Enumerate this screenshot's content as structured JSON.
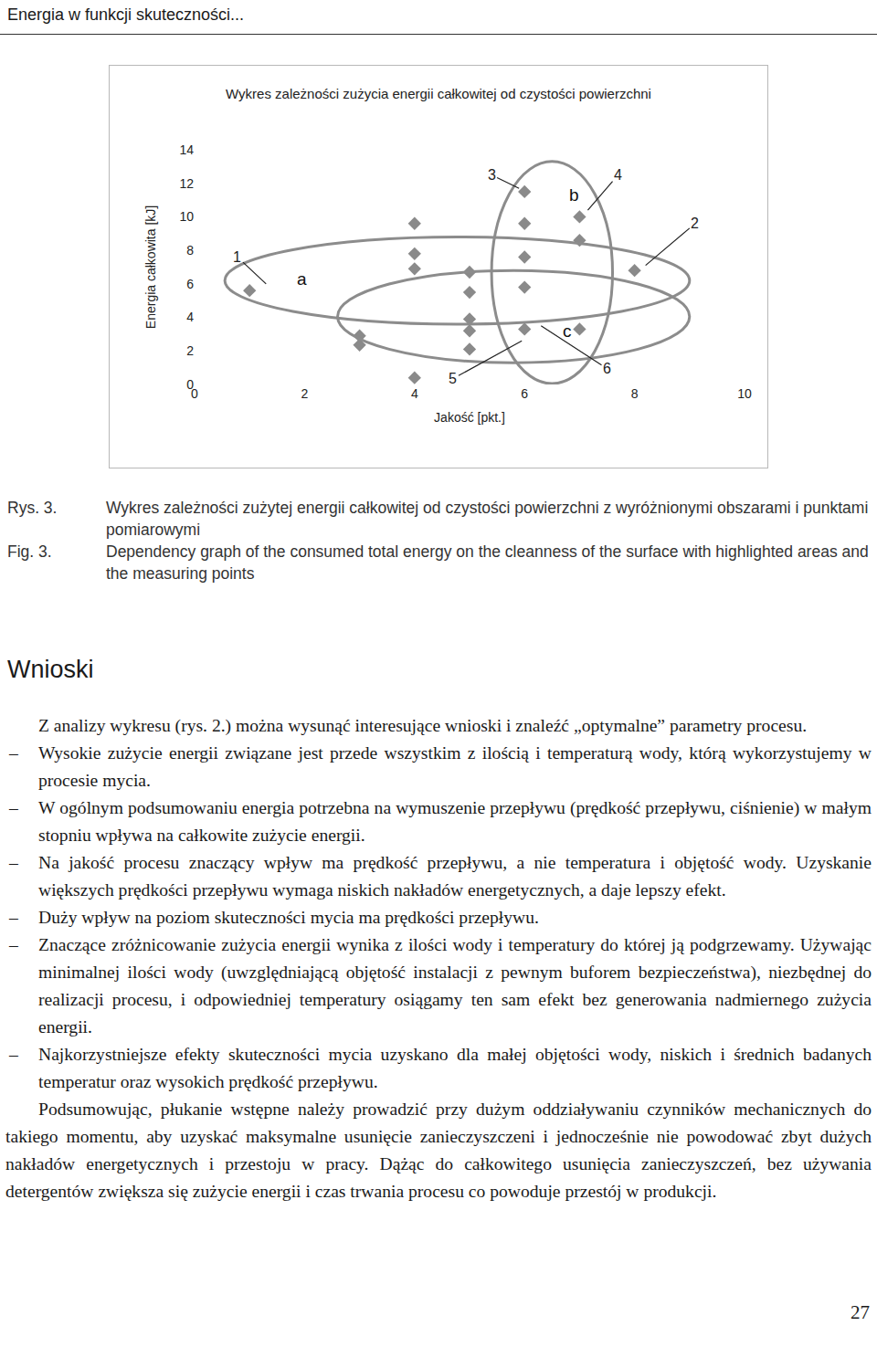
{
  "header": "Energia w funkcji skuteczności...",
  "chart_data": {
    "type": "scatter",
    "title": "Wykres zależności zużycia energii całkowitej od czystości powierzchni",
    "x_label": "Jakość [pkt.]",
    "y_label": "Energia całkowita [kJ]",
    "x": [
      1,
      3,
      3,
      4,
      4,
      4,
      4,
      5,
      5,
      5,
      5,
      5,
      6,
      6,
      6,
      6,
      6,
      7,
      7,
      7,
      8
    ],
    "values": [
      5.6,
      2.9,
      2.35,
      9.6,
      7.8,
      6.9,
      0.4,
      6.7,
      5.5,
      3.9,
      3.2,
      2.1,
      11.5,
      9.6,
      7.6,
      5.8,
      3.3,
      10.0,
      8.6,
      3.3,
      6.8
    ],
    "color": "#8a8a8a",
    "marker": "diamond",
    "xlim": [
      0,
      10
    ],
    "ylim": [
      0,
      14
    ],
    "xticks": [
      0,
      2,
      4,
      6,
      8,
      10
    ],
    "yticks": [
      0,
      2,
      4,
      6,
      8,
      10,
      12,
      14
    ],
    "grid": false,
    "annotations": [
      "1",
      "2",
      "3",
      "4",
      "5",
      "6",
      "a",
      "b",
      "c"
    ]
  },
  "caption": {
    "rys_label": "Rys. 3.",
    "rys_text": "Wykres zależności zużytej energii całkowitej od czystości powierzchni z wyróżnionymi obszarami i punktami pomiarowymi",
    "fig_label": "Fig. 3.",
    "fig_text": "Dependency graph of the consumed total energy on the cleanness of the surface with highlighted areas and the measuring points"
  },
  "section": {
    "title": "Wnioski",
    "intro": "Z analizy wykresu (rys. 2.) można wysunąć interesujące wnioski i znaleźć „optymalne” parametry procesu.",
    "bullets": [
      "Wysokie zużycie energii związane jest przede wszystkim z ilością i temperaturą wody, którą wykorzystujemy w procesie mycia.",
      "W ogólnym podsumowaniu energia potrzebna na wymuszenie przepływu (prędkość przepływu, ciśnienie) w małym stopniu wpływa na całkowite zużycie energii.",
      "Na jakość procesu znaczący wpływ ma prędkość przepływu, a nie temperatura i objętość wody. Uzyskanie większych prędkości przepływu wymaga niskich nakładów energetycznych, a daje lepszy efekt.",
      "Duży wpływ na poziom skuteczności mycia ma prędkości przepływu.",
      "Znaczące zróżnicowanie zużycia energii wynika z ilości wody i temperatury do której ją podgrzewamy. Używając minimalnej ilości wody (uwzględniającą objętość instalacji z pewnym buforem bezpieczeństwa), niezbędnej do realizacji procesu, i odpowiedniej temperatury osiągamy ten sam efekt bez generowania nadmiernego zużycia energii.",
      "Najkorzystniejsze efekty skuteczności mycia uzyskano dla małej objętości wody, niskich i średnich badanych temperatur oraz wysokich prędkość przepływu."
    ],
    "conclusion": "Podsumowując, płukanie wstępne należy prowadzić przy dużym oddziaływaniu czynników mechanicznych do takiego momentu, aby uzyskać maksymalne usunięcie zanieczyszczeni i jednocześnie nie powodować zbyt dużych nakładów energetycznych i przestoju w pracy. Dążąc do całkowitego usunięcia zanieczyszczeń, bez używania detergentów zwiększa się zużycie energii i czas trwania procesu co powoduje przestój w produkcji."
  },
  "page_number": "27"
}
